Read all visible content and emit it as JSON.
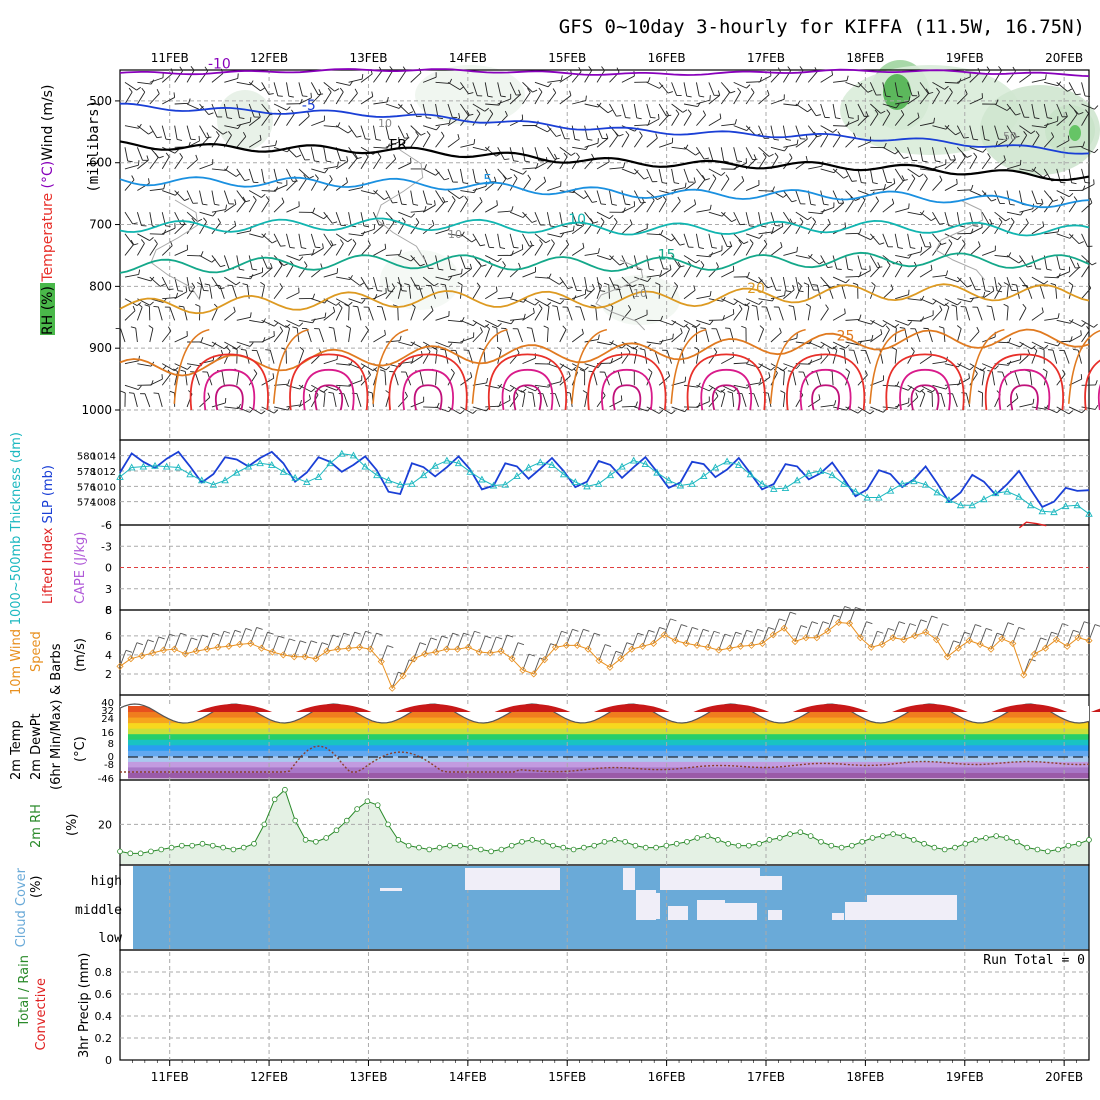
{
  "chart_data": {
    "type": "meteogram",
    "title": "GFS 0~10day 3-hourly for KIFFA (11.5W, 16.75N)",
    "dates": [
      "11FEB",
      "12FEB",
      "13FEB",
      "14FEB",
      "15FEB",
      "16FEB",
      "17FEB",
      "18FEB",
      "19FEB",
      "20FEB"
    ],
    "time_axis": {
      "start_day": 10.5,
      "end_day": 20.25,
      "step_hours": 3
    },
    "panels": {
      "upper_air": {
        "ylabel_lines": [
          "RH (%)",
          "Temperature (°C)",
          "Wind (m/s)"
        ],
        "yunit": "(millibars)",
        "yticks": [
          500,
          600,
          700,
          800,
          900,
          1000
        ],
        "ylim": [
          450,
          1000
        ],
        "temperature_contours": [
          {
            "label": "-10",
            "color": "#8800bb",
            "p_start": 452,
            "p_end": 455
          },
          {
            "label": "-5",
            "color": "#1a3fd6",
            "p_start": 505,
            "p_end": 580
          },
          {
            "label": "FR",
            "color": "#000000",
            "p_start": 568,
            "p_end": 622
          },
          {
            "label": "5",
            "color": "#1a90e0",
            "p_start": 625,
            "p_end": 665
          },
          {
            "label": "10",
            "color": "#11b5b0",
            "p_start": 700,
            "p_end": 708
          },
          {
            "label": "15",
            "color": "#14a88a",
            "p_start": 765,
            "p_end": 758
          },
          {
            "label": "20",
            "color": "#dd9a22",
            "p_start": 830,
            "p_end": 808
          },
          {
            "label": "25",
            "color": "#e07a20",
            "p_start": 930,
            "p_end": 880
          }
        ],
        "rh_label_values": [
          "10",
          "10",
          "10",
          "50"
        ]
      },
      "slp_thickness": {
        "ylabel_left": "1000~500mb Thickness (dm)",
        "ylabel_right": "SLP (mb)",
        "thickness_ticks": [
          574,
          576,
          578,
          580
        ],
        "slp_ticks": [
          1008,
          1010,
          1012,
          1014
        ],
        "slp_range": [
          1006,
          1015
        ],
        "slp": [
          1011.8,
          1014.3,
          1013.2,
          1012.4,
          1013.6,
          1014.5,
          1012.6,
          1010.5,
          1011.6,
          1013.8,
          1013.5,
          1012.6,
          1013.7,
          1014.5,
          1013.0,
          1010.6,
          1011.8,
          1013.8,
          1013.2,
          1011.9,
          1012.8,
          1013.9,
          1012.1,
          1009.3,
          1009.0,
          1013.0,
          1012.5,
          1011.3,
          1012.5,
          1013.9,
          1012.2,
          1009.6,
          1010.1,
          1013.0,
          1012.6,
          1011.0,
          1012.3,
          1013.7,
          1012.0,
          1009.9,
          1010.6,
          1013.3,
          1012.8,
          1011.1,
          1012.5,
          1013.8,
          1011.9,
          1009.8,
          1010.5,
          1013.2,
          1012.9,
          1011.2,
          1012.2,
          1013.7,
          1011.7,
          1009.6,
          1010.3,
          1012.9,
          1012.6,
          1010.9,
          1011.7,
          1013.1,
          1011.0,
          1008.7,
          1009.6,
          1012.1,
          1011.6,
          1009.9,
          1010.9,
          1012.6,
          1010.4,
          1008.0,
          1009.2,
          1011.5,
          1010.6,
          1008.9,
          1010.3,
          1012.0,
          1009.6,
          1007.3,
          1008.0,
          1009.8,
          1009.4,
          1009.5
        ],
        "thickness": [
          578.4,
          579.5,
          579.6,
          579.7,
          579.6,
          579.5,
          578.7,
          578.0,
          577.5,
          578.0,
          578.9,
          579.6,
          580.0,
          579.8,
          579.0,
          578.3,
          577.8,
          578.4,
          580.0,
          581.1,
          580.9,
          579.6,
          578.6,
          578.0,
          577.5,
          577.6,
          578.6,
          579.7,
          580.3,
          580.0,
          579.0,
          578.1,
          577.4,
          577.5,
          578.5,
          579.5,
          580.1,
          579.8,
          578.7,
          577.8,
          577.3,
          577.6,
          578.6,
          579.6,
          580.3,
          579.9,
          578.9,
          578.0,
          577.4,
          577.6,
          578.5,
          579.5,
          580.2,
          579.8,
          578.7,
          577.6,
          577.0,
          577.1,
          578.0,
          578.8,
          579.1,
          578.6,
          577.6,
          576.7,
          576.0,
          576.0,
          576.8,
          577.6,
          577.9,
          577.5,
          576.6,
          575.7,
          575.1,
          575.1,
          575.8,
          576.5,
          576.7,
          576.1,
          575.1,
          574.4,
          574.3,
          575.0,
          575.1,
          574.1
        ]
      },
      "cape_li": {
        "ylabel_left": "Lifted Index",
        "ylabel_right": "CAPE (J/kg)",
        "li_ticks": [
          "6",
          "3",
          "0",
          "-3",
          "-6"
        ],
        "li_range": [
          -6,
          6
        ],
        "cape_ticks": [
          "8"
        ],
        "lifted_index": [
          {
            "day": 19.55,
            "v": -5.6
          },
          {
            "day": 19.62,
            "v": -6.4
          },
          {
            "day": 19.72,
            "v": -6.2
          },
          {
            "day": 19.82,
            "v": -5.9
          }
        ]
      },
      "wind10m": {
        "ylabel_lines": [
          "10m Wind",
          "Speed",
          "& Barbs"
        ],
        "yunit": "(m/s)",
        "yticks": [
          2,
          4,
          6
        ],
        "ylim": [
          0,
          8.5
        ],
        "speed": [
          2.8,
          3.6,
          3.9,
          4.2,
          4.5,
          4.6,
          4.1,
          4.4,
          4.6,
          4.8,
          4.9,
          5.1,
          5.2,
          4.7,
          4.3,
          4.0,
          3.8,
          3.8,
          3.6,
          4.4,
          4.6,
          4.7,
          4.8,
          4.6,
          3.3,
          0.5,
          1.8,
          3.6,
          4.1,
          4.3,
          4.6,
          4.6,
          4.8,
          4.3,
          4.2,
          4.4,
          3.6,
          2.4,
          2.0,
          3.5,
          4.8,
          5.0,
          5.0,
          4.6,
          3.4,
          2.7,
          3.6,
          4.6,
          4.9,
          5.2,
          6.1,
          5.5,
          5.2,
          5.0,
          4.8,
          4.5,
          4.7,
          4.9,
          5.0,
          5.2,
          6.1,
          6.8,
          5.4,
          5.8,
          5.8,
          6.5,
          7.4,
          7.3,
          5.8,
          4.8,
          5.1,
          5.8,
          5.6,
          6.0,
          6.4,
          5.6,
          3.8,
          4.7,
          5.5,
          5.1,
          4.6,
          5.7,
          5.2,
          1.9,
          4.1,
          4.7,
          5.6,
          4.9,
          5.8,
          5.5
        ]
      },
      "temp2m": {
        "ylabel_lines": [
          "2m Temp",
          "2m DewPt",
          "(6hr Min/Max)"
        ],
        "yunit": "(°C)",
        "yticks": [
          "40",
          "32",
          "24",
          "16",
          "8",
          "0",
          "-8",
          "-46"
        ]
      },
      "rh2m": {
        "ylabel": "2m RH",
        "yunit": "(%)",
        "yticks": [
          20
        ],
        "ylim": [
          0,
          42
        ],
        "values": [
          6,
          5,
          5,
          6,
          7,
          8,
          9,
          9,
          10,
          9,
          8,
          7,
          8,
          10,
          20,
          33,
          38,
          22,
          12,
          11,
          13,
          17,
          22,
          28,
          32,
          30,
          20,
          12,
          9,
          8,
          7,
          8,
          9,
          9,
          8,
          7,
          6,
          7,
          9,
          11,
          12,
          11,
          9,
          8,
          7,
          8,
          9,
          11,
          12,
          11,
          9,
          8,
          8,
          9,
          10,
          11,
          13,
          14,
          12,
          10,
          9,
          9,
          10,
          12,
          13,
          15,
          16,
          14,
          11,
          9,
          8,
          9,
          11,
          13,
          14,
          15,
          14,
          12,
          10,
          8,
          7,
          8,
          10,
          12,
          13,
          14,
          13,
          11,
          8,
          7,
          6,
          7,
          9,
          10,
          12
        ]
      },
      "cloud": {
        "ylabel": "Cloud Cover",
        "yunit": "(%)",
        "levels": [
          "high",
          "middle",
          "low"
        ]
      },
      "precip": {
        "ylabel_left": "Total / Rain",
        "ylabel_right": "Convective",
        "yaxis_label": "3hr Precip (mm)",
        "yticks": [
          "0",
          "0.2",
          "0.4",
          "0.6",
          "0.8"
        ],
        "ylim": [
          0,
          1
        ],
        "run_total": "Run Total = 0"
      }
    }
  },
  "colors": {
    "slp": "#1a3fd6",
    "thickness": "#1cb8c0",
    "wind": "#e89020",
    "rh": "#2a8a2a",
    "cloud_bg": "#6aaad8",
    "cloud_fill": "#f0eef8",
    "li": "#e02020",
    "cape": "#b05ad8",
    "grid": "#aaaaaa"
  }
}
